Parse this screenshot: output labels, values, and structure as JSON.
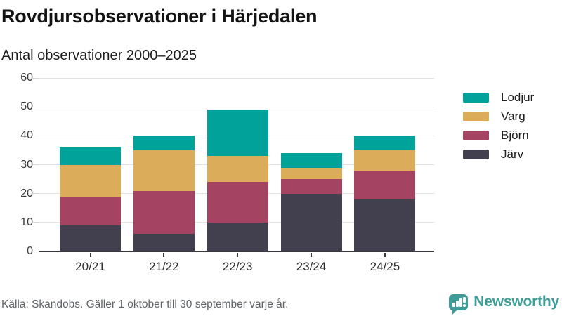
{
  "header": {
    "title": "Rovdjursobservationer i Härjedalen",
    "subtitle": "Antal observationer 2000–2025"
  },
  "chart_data": {
    "type": "bar",
    "stacked": true,
    "title": "Rovdjursobservationer i Härjedalen",
    "subtitle": "Antal observationer 2000–2025",
    "categories": [
      "20/21",
      "21/22",
      "22/23",
      "23/24",
      "24/25"
    ],
    "series": [
      {
        "name": "Järv",
        "color": "#42404E",
        "values": [
          9,
          6,
          10,
          20,
          18
        ]
      },
      {
        "name": "Björn",
        "color": "#A54362",
        "values": [
          10,
          15,
          14,
          5,
          10
        ]
      },
      {
        "name": "Varg",
        "color": "#DBAD5B",
        "values": [
          11,
          14,
          9,
          4,
          7
        ]
      },
      {
        "name": "Lodjur",
        "color": "#00A29A",
        "values": [
          6,
          5,
          16,
          5,
          5
        ]
      }
    ],
    "legend_order": [
      "Lodjur",
      "Varg",
      "Björn",
      "Järv"
    ],
    "legend_position": "right",
    "ylim": [
      0,
      60
    ],
    "yticks": [
      0,
      10,
      20,
      30,
      40,
      50,
      60
    ],
    "grid": true
  },
  "footer": {
    "source": "Källa: Skandobs. Gäller 1 oktober till 30 september varje år.",
    "brand": "Newsworthy"
  },
  "colors": {
    "background": "#FFFFFF",
    "grid": "#E2E2E2",
    "axis": "#3A3A40",
    "brand_teal": "#3E9D99"
  }
}
